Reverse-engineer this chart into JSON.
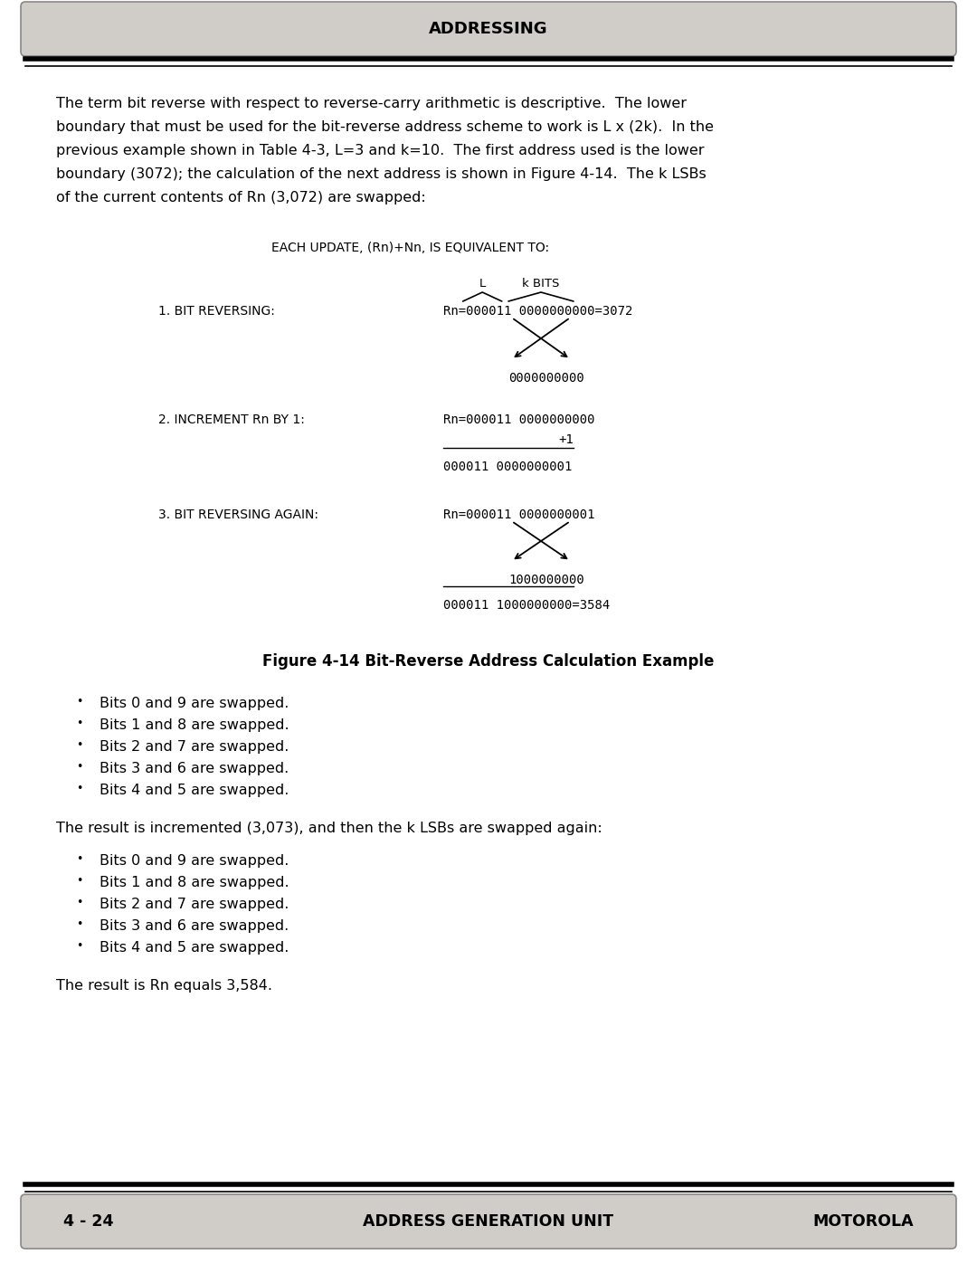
{
  "page_title": "ADDRESSING",
  "footer_left": "4 - 24",
  "footer_center": "ADDRESS GENERATION UNIT",
  "footer_right": "MOTOROLA",
  "body_lines": [
    "The term bit reverse with respect to reverse-carry arithmetic is descriptive.  The lower",
    "boundary that must be used for the bit-reverse address scheme to work is L x (2k).  In the",
    "previous example shown in Table 4-3, L=3 and k=10.  The first address used is the lower",
    "boundary (3072); the calculation of the next address is shown in Figure 4-14.  The k LSBs",
    "of the current contents of Rn (3,072) are swapped:"
  ],
  "each_update_label": "EACH UPDATE, (Rn)+Nn, IS EQUIVALENT TO:",
  "step1_label": "1. BIT REVERSING:",
  "step1_rn": "Rn=000011 0000000000=3072",
  "step1_result": "0000000000",
  "step2_label": "2. INCREMENT Rn BY 1:",
  "step2_rn": "Rn=000011 0000000000",
  "step2_plus1": "+1",
  "step2_result": "000011 0000000001",
  "step3_label": "3. BIT REVERSING AGAIN:",
  "step3_rn": "Rn=000011 0000000001",
  "step3_mid": "1000000000",
  "step3_result": "000011 1000000000=3584",
  "label_L": "L",
  "label_k_bits": "k BITS",
  "figure_caption": "Figure 4-14 Bit-Reverse Address Calculation Example",
  "bullets_1": [
    "Bits 0 and 9 are swapped.",
    "Bits 1 and 8 are swapped.",
    "Bits 2 and 7 are swapped.",
    "Bits 3 and 6 are swapped.",
    "Bits 4 and 5 are swapped."
  ],
  "mid_text": "The result is incremented (3,073), and then the k LSBs are swapped again:",
  "bullets_2": [
    "Bits 0 and 9 are swapped.",
    "Bits 1 and 8 are swapped.",
    "Bits 2 and 7 are swapped.",
    "Bits 3 and 6 are swapped.",
    "Bits 4 and 5 are swapped."
  ],
  "final_text": "The result is Rn equals 3,584.",
  "bg_color": "#ffffff",
  "header_bg": "#d0cdc8",
  "footer_bg": "#d0cdc8",
  "text_color": "#000000",
  "border_color": "#000000",
  "diagram_font_size": 10.0,
  "body_font_size": 11.5,
  "bullet_font_size": 11.5,
  "step_label_font_size": 10.0
}
